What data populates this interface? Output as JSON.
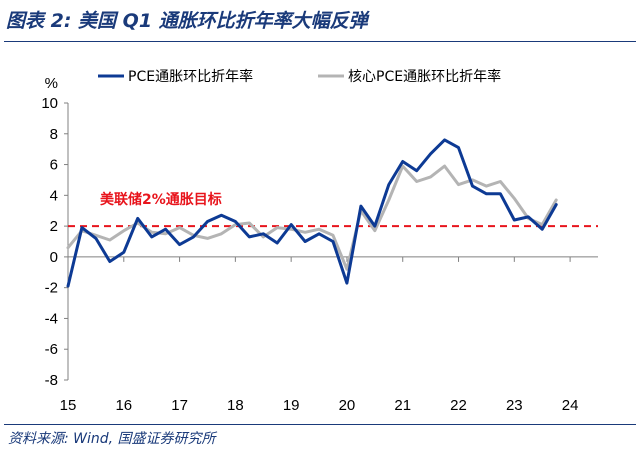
{
  "title": "图表 2:  美国 Q1 通胀环比折年率大幅反弹",
  "source": "资料来源: Wind, 国盛证券研究所",
  "colors": {
    "title": "#1a3a7a",
    "pce": "#0d3a94",
    "core": "#b4b4b4",
    "target": "#e8141c"
  },
  "chart_data": {
    "type": "line",
    "title": "美国 Q1 通胀环比折年率大幅反弹",
    "ylabel": "%",
    "xlabel": "",
    "ylim": [
      -8,
      10
    ],
    "yticks": [
      10,
      8,
      6,
      4,
      2,
      0,
      -2,
      -4,
      -6,
      -8
    ],
    "xlim": [
      2015.0,
      2024.5
    ],
    "xticks": [
      {
        "label": "15",
        "x": 2015.0
      },
      {
        "label": "16",
        "x": 2016.0
      },
      {
        "label": "17",
        "x": 2017.0
      },
      {
        "label": "18",
        "x": 2018.0
      },
      {
        "label": "19",
        "x": 2019.0
      },
      {
        "label": "20",
        "x": 2020.0
      },
      {
        "label": "21",
        "x": 2021.0
      },
      {
        "label": "22",
        "x": 2022.0
      },
      {
        "label": "23",
        "x": 2023.0
      },
      {
        "label": "24",
        "x": 2024.0
      }
    ],
    "x": [
      2015.0,
      2015.25,
      2015.5,
      2015.75,
      2016.0,
      2016.25,
      2016.5,
      2016.75,
      2017.0,
      2017.25,
      2017.5,
      2017.75,
      2018.0,
      2018.25,
      2018.5,
      2018.75,
      2019.0,
      2019.25,
      2019.5,
      2019.75,
      2020.0,
      2020.25,
      2020.5,
      2020.75,
      2021.0,
      2021.25,
      2021.5,
      2021.75,
      2022.0,
      2022.25,
      2022.5,
      2022.75,
      2023.0,
      2023.25,
      2023.5,
      2023.75,
      2024.0
    ],
    "series": [
      {
        "name": "PCE通胀环比折年率",
        "values": [
          -1.9,
          1.9,
          1.2,
          -0.3,
          0.3,
          2.5,
          1.3,
          1.8,
          0.8,
          1.3,
          2.3,
          2.7,
          2.3,
          1.3,
          1.5,
          0.9,
          2.1,
          1.0,
          1.5,
          1.0,
          -1.7,
          3.3,
          2.0,
          4.7,
          6.2,
          5.6,
          6.7,
          7.6,
          7.1,
          4.6,
          4.1,
          4.1,
          2.4,
          2.6,
          1.8,
          3.4,
          null
        ]
      },
      {
        "name": "核心PCE通胀环比折年率",
        "values": [
          0.6,
          1.7,
          1.4,
          1.1,
          1.7,
          2.2,
          1.6,
          1.5,
          1.9,
          1.4,
          1.2,
          1.5,
          2.1,
          2.2,
          1.3,
          1.9,
          1.8,
          1.6,
          1.8,
          1.4,
          -0.8,
          3.0,
          1.7,
          3.7,
          5.9,
          4.9,
          5.2,
          5.9,
          4.7,
          5.0,
          4.6,
          4.9,
          3.8,
          2.5,
          2.1,
          3.7,
          null
        ]
      }
    ],
    "reference_line": {
      "value": 2.0,
      "style": "dashed",
      "label": "美联储2%通胀目标"
    }
  }
}
